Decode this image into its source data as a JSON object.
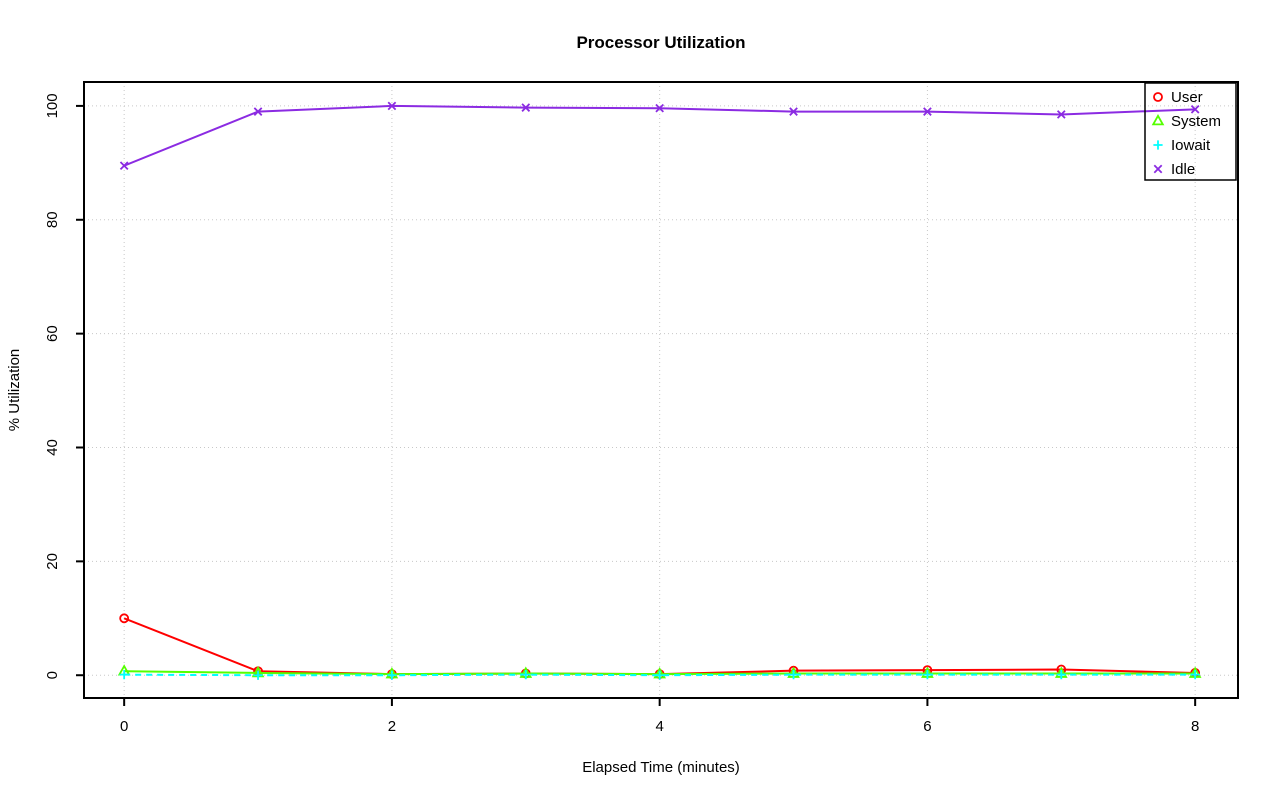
{
  "page": {
    "background": "#FFFFFF",
    "text_color": "#000000",
    "grid_color": "#C8C8C8",
    "axis_color": "#000000"
  },
  "chart_data": {
    "type": "line",
    "title": "Processor Utilization",
    "xlabel": "Elapsed Time (minutes)",
    "ylabel": "% Utilization",
    "grid": "dotted",
    "legend_position": "top-right",
    "legend_entries": [
      "User",
      "System",
      "Iowait",
      "Idle"
    ],
    "x": [
      0,
      1,
      2,
      3,
      4,
      5,
      6,
      7,
      8
    ],
    "xticks": [
      0,
      2,
      4,
      6,
      8
    ],
    "yticks": [
      0,
      20,
      40,
      60,
      80,
      100
    ],
    "xlim": [
      -0.3,
      8.32
    ],
    "ylim": [
      -4,
      104.2
    ],
    "series": [
      {
        "name": "User",
        "color": "#FF0000",
        "marker": "circle",
        "line": "solid",
        "values": [
          10.0,
          0.7,
          0.2,
          0.3,
          0.2,
          0.8,
          0.9,
          1.0,
          0.4
        ]
      },
      {
        "name": "System",
        "color": "#55FF00",
        "marker": "triangle",
        "line": "solid",
        "values": [
          0.7,
          0.4,
          0.2,
          0.3,
          0.2,
          0.3,
          0.3,
          0.3,
          0.3
        ]
      },
      {
        "name": "Iowait",
        "color": "#00FFFF",
        "marker": "plus",
        "line": "dashed",
        "values": [
          0.1,
          0.0,
          0.0,
          0.1,
          0.0,
          0.1,
          0.1,
          0.1,
          0.1
        ]
      },
      {
        "name": "Idle",
        "color": "#8B2BE2",
        "marker": "x",
        "line": "solid",
        "values": [
          89.5,
          99.0,
          100.0,
          99.7,
          99.6,
          99.0,
          99.0,
          98.5,
          99.4
        ]
      }
    ]
  }
}
